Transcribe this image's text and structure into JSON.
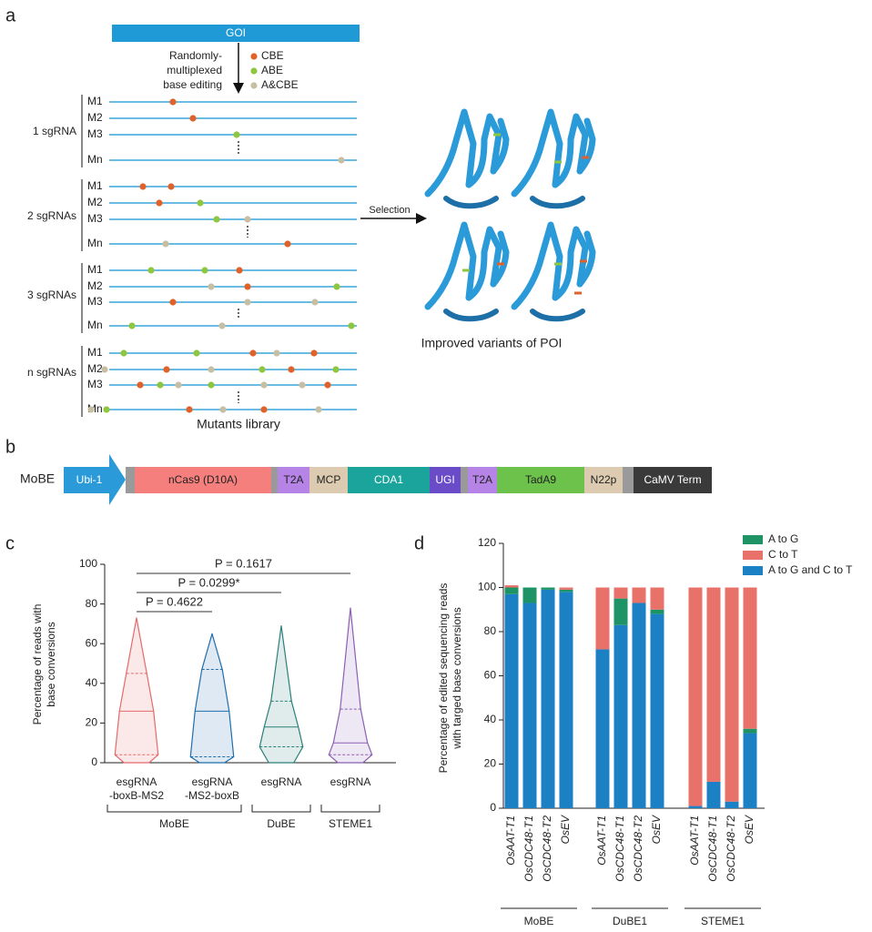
{
  "panel_labels": [
    "a",
    "b",
    "c",
    "d"
  ],
  "panel_a": {
    "goi": "GOI",
    "process": [
      "Randomly-",
      "multiplexed",
      "base editing"
    ],
    "edit_types": [
      {
        "name": "CBE",
        "color": "#e0622a"
      },
      {
        "name": "ABE",
        "color": "#8dc63f"
      },
      {
        "name": "A&CBE",
        "color": "#c8bea2"
      }
    ],
    "groups": [
      {
        "label": "1 sgRNA",
        "rows": [
          "M1",
          "M2",
          "M3",
          "Mn"
        ]
      },
      {
        "label": "2 sgRNAs",
        "rows": [
          "M1",
          "M2",
          "M3",
          "Mn"
        ]
      },
      {
        "label": "3 sgRNAs",
        "rows": [
          "M1",
          "M2",
          "M3",
          "Mn"
        ]
      },
      {
        "label": "n sgRNAs",
        "rows": [
          "M1",
          "M2",
          "M3",
          "Mn"
        ]
      }
    ],
    "selection": "Selection",
    "result": "Improved variants of POI",
    "library": "Mutants library"
  },
  "panel_b": {
    "name": "MoBE",
    "segments": [
      {
        "label": "Ubi-1",
        "color": "#2b9ad8"
      },
      {
        "label": "nCas9 (D10A)",
        "color": "#f47f7c"
      },
      {
        "label": "T2A",
        "color": "#b684e6"
      },
      {
        "label": "MCP",
        "color": "#dccbb0"
      },
      {
        "label": "CDA1",
        "color": "#1aa49b"
      },
      {
        "label": "UGI",
        "color": "#6a4bc8"
      },
      {
        "label": "T2A",
        "color": "#b684e6"
      },
      {
        "label": "TadA9",
        "color": "#6cc24a"
      },
      {
        "label": "N22p",
        "color": "#dccbb0"
      },
      {
        "label": "CaMV Term",
        "color": "#3a3a3a"
      }
    ]
  },
  "chart_data": [
    {
      "type": "violin",
      "ylabel": [
        "Percentage of reads with",
        "base conversions"
      ],
      "ylim": [
        0,
        100
      ],
      "yticks": [
        0,
        20,
        40,
        60,
        80,
        100
      ],
      "groups": [
        {
          "name": "MoBE",
          "categories": [
            {
              "label": [
                "esgRNA",
                "-boxB-MS2"
              ],
              "color": "#e46a6a",
              "min": 0,
              "q1": 4,
              "median": 26,
              "q3": 45,
              "max": 73
            },
            {
              "label": [
                "esgRNA",
                "-MS2-boxB"
              ],
              "color": "#1f6eae",
              "min": 0,
              "q1": 3,
              "median": 26,
              "q3": 47,
              "max": 65
            }
          ]
        },
        {
          "name": "DuBE",
          "categories": [
            {
              "label": [
                "esgRNA"
              ],
              "color": "#2a8079",
              "min": 0,
              "q1": 8,
              "median": 18,
              "q3": 31,
              "max": 69
            }
          ]
        },
        {
          "name": "STEME1",
          "categories": [
            {
              "label": [
                "esgRNA"
              ],
              "color": "#8c5fb3",
              "min": 0,
              "q1": 4,
              "median": 10,
              "q3": 27,
              "max": 78
            }
          ]
        }
      ],
      "annotations": [
        "P = 0.4622",
        "P = 0.0299*",
        "P = 0.1617"
      ]
    },
    {
      "type": "stacked_bar",
      "ylabel": [
        "Percentage of edited sequencing reads",
        "with targed base conversions"
      ],
      "ylim": [
        0,
        120
      ],
      "yticks": [
        0,
        20,
        40,
        60,
        80,
        100,
        120
      ],
      "groups": [
        {
          "name": "MoBE",
          "categories": [
            "OsAAT-T1",
            "OsCDC48-T1",
            "OsCDC48-T2",
            "OsEV"
          ]
        },
        {
          "name": "DuBE1",
          "categories": [
            "OsAAT-T1",
            "OsCDC48-T1",
            "OsCDC48-T2",
            "OsEV"
          ]
        },
        {
          "name": "STEME1",
          "categories": [
            "OsAAT-T1",
            "OsCDC48-T1",
            "OsCDC48-T2",
            "OsEV"
          ]
        }
      ],
      "series": [
        {
          "name": "A to G",
          "color": "#1e9466",
          "values": [
            3,
            7,
            1,
            1,
            0,
            12,
            0,
            2,
            0,
            0,
            0,
            2
          ]
        },
        {
          "name": "C to T",
          "color": "#e8716a",
          "values": [
            1,
            0,
            0,
            1,
            28,
            5,
            7,
            10,
            99,
            88,
            97,
            64
          ]
        },
        {
          "name": "A to G and C to T",
          "color": "#1b80c4",
          "values": [
            97,
            93,
            99,
            98,
            72,
            83,
            93,
            88,
            1,
            12,
            3,
            34
          ]
        }
      ],
      "legend": "top-right"
    }
  ]
}
